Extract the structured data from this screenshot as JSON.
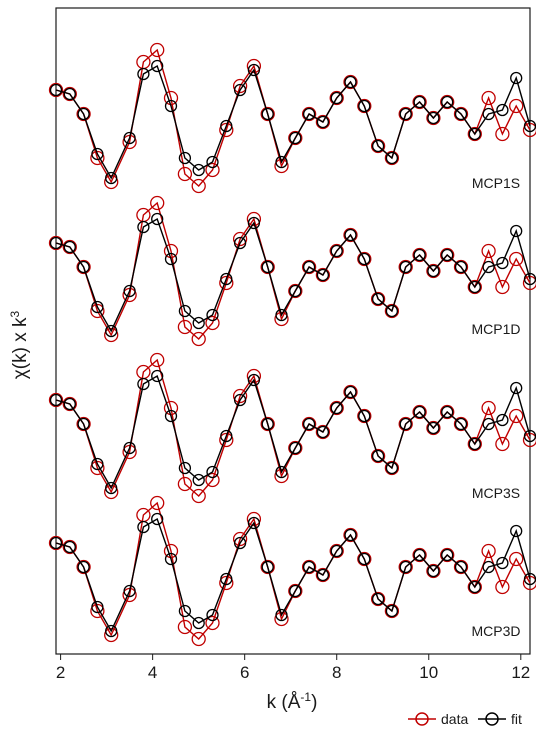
{
  "chart_data": {
    "type": "line",
    "title": "",
    "xlabel": "k (Å",
    "xlabel_sup": "-1",
    "xlabel_end": ")",
    "ylabel": "χ(k) x k",
    "ylabel_sup": "3",
    "xlim": [
      1.9,
      12.2
    ],
    "xticks": [
      2,
      4,
      6,
      8,
      10,
      12
    ],
    "xtick_labels": [
      "2",
      "4",
      "6",
      "8",
      "10",
      "12"
    ],
    "y_ticks_shown": false,
    "grid": false,
    "legend_position": "bottom-right",
    "legend": [
      {
        "name": "data",
        "color": "#c00000",
        "marker": "open-circle"
      },
      {
        "name": "fit",
        "color": "#000000",
        "marker": "open-circle"
      }
    ],
    "x": [
      1.9,
      2.2,
      2.5,
      2.8,
      3.1,
      3.5,
      3.8,
      4.1,
      4.4,
      4.7,
      5.0,
      5.3,
      5.6,
      5.9,
      6.2,
      6.5,
      6.8,
      7.1,
      7.4,
      7.7,
      8.0,
      8.3,
      8.6,
      8.9,
      9.2,
      9.5,
      9.8,
      10.1,
      10.4,
      10.7,
      11.0,
      11.3,
      11.6,
      11.9,
      12.2
    ],
    "panels": [
      {
        "label": "MCP1S",
        "series": [
          {
            "name": "data",
            "values": [
              0.8,
              0.7,
              0.2,
              -0.9,
              -1.5,
              -0.5,
              1.5,
              1.8,
              0.6,
              -1.3,
              -1.6,
              -1.2,
              -0.2,
              0.9,
              1.4,
              0.2,
              -1.1,
              -0.4,
              0.2,
              0.0,
              0.6,
              1.0,
              0.4,
              -0.6,
              -0.9,
              0.2,
              0.5,
              0.1,
              0.5,
              0.2,
              -0.3,
              0.6,
              -0.3,
              0.4,
              -0.2
            ]
          },
          {
            "name": "fit",
            "values": [
              0.8,
              0.7,
              0.2,
              -0.8,
              -1.4,
              -0.4,
              1.2,
              1.4,
              0.4,
              -0.9,
              -1.2,
              -1.0,
              -0.1,
              0.8,
              1.3,
              0.2,
              -1.0,
              -0.4,
              0.2,
              0.0,
              0.6,
              1.0,
              0.4,
              -0.6,
              -0.9,
              0.2,
              0.5,
              0.1,
              0.5,
              0.2,
              -0.3,
              0.2,
              0.3,
              1.1,
              -0.1
            ]
          }
        ]
      },
      {
        "label": "MCP1D",
        "series": [
          {
            "name": "data",
            "values": [
              0.8,
              0.7,
              0.2,
              -0.9,
              -1.5,
              -0.5,
              1.5,
              1.8,
              0.6,
              -1.3,
              -1.6,
              -1.2,
              -0.2,
              0.9,
              1.4,
              0.2,
              -1.1,
              -0.4,
              0.2,
              0.0,
              0.6,
              1.0,
              0.4,
              -0.6,
              -0.9,
              0.2,
              0.5,
              0.1,
              0.5,
              0.2,
              -0.3,
              0.6,
              -0.3,
              0.4,
              -0.2
            ]
          },
          {
            "name": "fit",
            "values": [
              0.8,
              0.7,
              0.2,
              -0.8,
              -1.4,
              -0.4,
              1.2,
              1.4,
              0.4,
              -0.9,
              -1.2,
              -1.0,
              -0.1,
              0.8,
              1.3,
              0.2,
              -1.0,
              -0.4,
              0.2,
              0.0,
              0.6,
              1.0,
              0.4,
              -0.6,
              -0.9,
              0.2,
              0.5,
              0.1,
              0.5,
              0.2,
              -0.3,
              0.2,
              0.3,
              1.1,
              -0.1
            ]
          }
        ]
      },
      {
        "label": "MCP3S",
        "series": [
          {
            "name": "data",
            "values": [
              0.8,
              0.7,
              0.2,
              -0.9,
              -1.5,
              -0.5,
              1.5,
              1.8,
              0.6,
              -1.3,
              -1.6,
              -1.2,
              -0.2,
              0.9,
              1.4,
              0.2,
              -1.1,
              -0.4,
              0.2,
              0.0,
              0.6,
              1.0,
              0.4,
              -0.6,
              -0.9,
              0.2,
              0.5,
              0.1,
              0.5,
              0.2,
              -0.3,
              0.6,
              -0.3,
              0.4,
              -0.2
            ]
          },
          {
            "name": "fit",
            "values": [
              0.8,
              0.7,
              0.2,
              -0.8,
              -1.4,
              -0.4,
              1.2,
              1.4,
              0.4,
              -0.9,
              -1.2,
              -1.0,
              -0.1,
              0.8,
              1.3,
              0.2,
              -1.0,
              -0.4,
              0.2,
              0.0,
              0.6,
              1.0,
              0.4,
              -0.6,
              -0.9,
              0.2,
              0.5,
              0.1,
              0.5,
              0.2,
              -0.3,
              0.2,
              0.3,
              1.1,
              -0.1
            ]
          }
        ]
      },
      {
        "label": "MCP3D",
        "series": [
          {
            "name": "data",
            "values": [
              0.8,
              0.7,
              0.2,
              -0.9,
              -1.5,
              -0.5,
              1.5,
              1.8,
              0.6,
              -1.3,
              -1.6,
              -1.2,
              -0.2,
              0.9,
              1.4,
              0.2,
              -1.1,
              -0.4,
              0.2,
              0.0,
              0.6,
              1.0,
              0.4,
              -0.6,
              -0.9,
              0.2,
              0.5,
              0.1,
              0.5,
              0.2,
              -0.3,
              0.6,
              -0.3,
              0.4,
              -0.2
            ]
          },
          {
            "name": "fit",
            "values": [
              0.8,
              0.7,
              0.2,
              -0.8,
              -1.4,
              -0.4,
              1.2,
              1.4,
              0.4,
              -0.9,
              -1.2,
              -1.0,
              -0.1,
              0.8,
              1.3,
              0.2,
              -1.0,
              -0.4,
              0.2,
              0.0,
              0.6,
              1.0,
              0.4,
              -0.6,
              -0.9,
              0.2,
              0.5,
              0.1,
              0.5,
              0.2,
              -0.3,
              0.2,
              0.3,
              1.1,
              -0.1
            ]
          }
        ]
      }
    ]
  }
}
